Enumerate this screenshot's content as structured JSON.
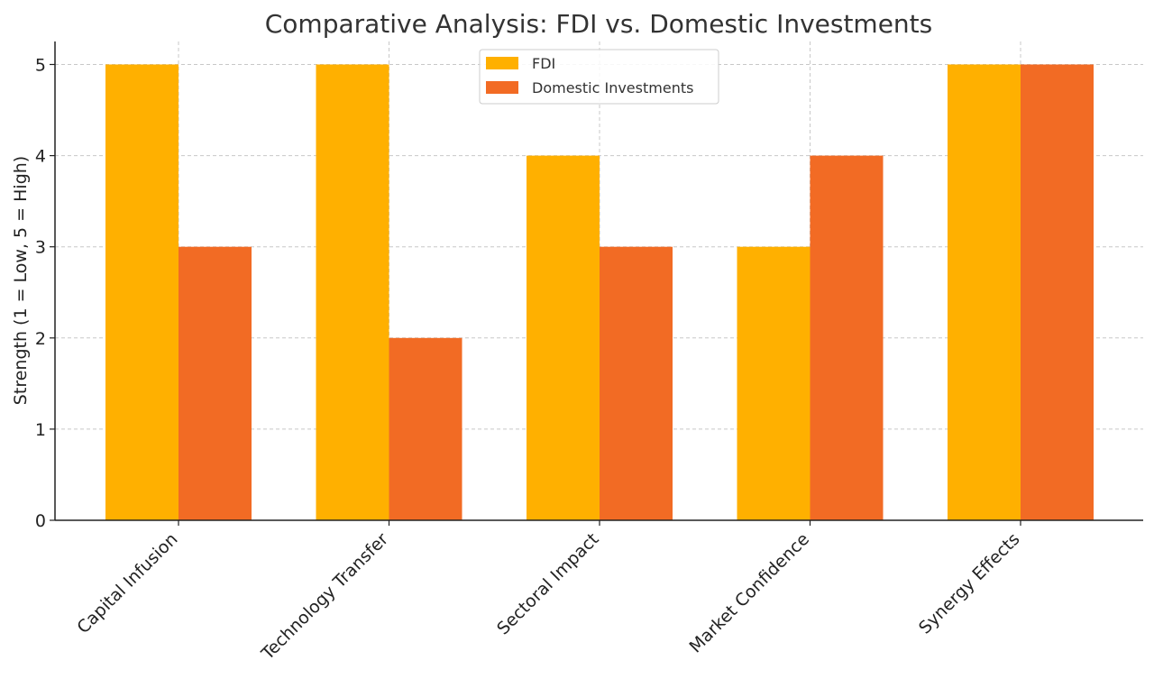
{
  "chart_data": {
    "type": "bar",
    "title": "Comparative Analysis: FDI vs. Domestic Investments",
    "xlabel": "",
    "ylabel": "Strength (1 = Low, 5 = High)",
    "ylim": [
      0,
      5.25
    ],
    "yticks": [
      "0",
      "1",
      "2",
      "3",
      "4",
      "5"
    ],
    "categories": [
      "Capital Infusion",
      "Technology Transfer",
      "Sectoral Impact",
      "Market Confidence",
      "Synergy Effects"
    ],
    "series": [
      {
        "name": "FDI",
        "color": "#FFB000",
        "values": [
          5,
          5,
          4,
          3,
          5
        ]
      },
      {
        "name": "Domestic Investments",
        "color": "#F26B24",
        "values": [
          3,
          2,
          3,
          4,
          5
        ]
      }
    ],
    "grid": true,
    "legend_position": "top-center"
  }
}
